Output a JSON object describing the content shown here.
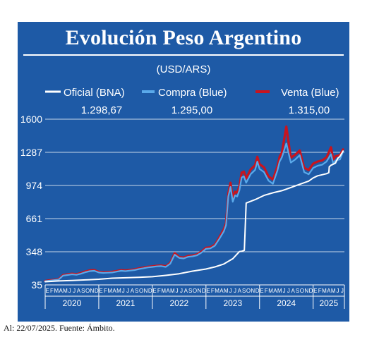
{
  "chart_data": {
    "type": "line",
    "title": "Evolución Peso Argentino",
    "subtitle": "(USD/ARS)",
    "footer": "Al: 22/07/2025. Fuente: Ámbito.",
    "legend": [
      {
        "name": "Oficial (BNA)",
        "value": "1.298,67",
        "color": "#ffffff"
      },
      {
        "name": "Compra (Blue)",
        "value": "1.295,00",
        "color": "#5aa9ea"
      },
      {
        "name": "Venta (Blue)",
        "value": "1.315,00",
        "color": "#c8141e"
      }
    ],
    "ylim": [
      35,
      1600
    ],
    "yticks": [
      "1600",
      "1287",
      "974",
      "661",
      "348",
      "35"
    ],
    "xlim": [
      0,
      67
    ],
    "month_ticks": [
      "E",
      "F",
      "M",
      "A",
      "M",
      "J",
      "J",
      "A",
      "S",
      "O",
      "N",
      "D",
      "E",
      "F",
      "M",
      "A",
      "M",
      "J",
      "J",
      "A",
      "S",
      "O",
      "N",
      "D",
      "E",
      "F",
      "M",
      "A",
      "M",
      "J",
      "J",
      "A",
      "S",
      "O",
      "N",
      "D",
      "E",
      "F",
      "M",
      "A",
      "M",
      "J",
      "J",
      "A",
      "S",
      "O",
      "N",
      "D",
      "E",
      "F",
      "M",
      "A",
      "M",
      "J",
      "J",
      "A",
      "S",
      "O",
      "N",
      "D",
      "E",
      "F",
      "M",
      "A",
      "M",
      "J",
      "J"
    ],
    "years": [
      {
        "label": "2020",
        "start": 0,
        "end": 12
      },
      {
        "label": "2021",
        "start": 12,
        "end": 24
      },
      {
        "label": "2022",
        "start": 24,
        "end": 36
      },
      {
        "label": "2023",
        "start": 36,
        "end": 48
      },
      {
        "label": "2024",
        "start": 48,
        "end": 60
      },
      {
        "label": "2025",
        "start": 60,
        "end": 67
      }
    ],
    "series": [
      {
        "name": "Oficial (BNA)",
        "x": [
          0,
          3,
          6,
          9,
          12,
          15,
          18,
          21,
          24,
          27,
          30,
          33,
          36,
          38,
          40,
          42,
          43.5,
          44,
          44.6,
          45,
          47,
          49,
          51,
          53,
          55,
          57,
          59,
          60,
          61,
          62,
          63,
          63.5,
          63.6,
          64,
          64.5,
          65,
          65.5,
          66,
          66.7
        ],
        "y": [
          65,
          72,
          77,
          82,
          88,
          98,
          102,
          106,
          112,
          125,
          140,
          165,
          185,
          205,
          232,
          282,
          350,
          352,
          362,
          808,
          840,
          880,
          905,
          925,
          955,
          985,
          1015,
          1045,
          1065,
          1075,
          1085,
          1095,
          1150,
          1165,
          1175,
          1185,
          1230,
          1250,
          1298.67
        ]
      },
      {
        "name": "Compra (Blue)",
        "x": [
          0,
          1,
          2,
          3,
          4,
          5,
          6,
          7,
          8,
          9,
          10,
          11,
          12,
          13,
          14,
          15,
          16,
          17,
          18,
          19,
          20,
          21,
          22,
          23,
          24,
          25,
          26,
          27,
          28,
          29,
          30,
          31,
          32,
          33,
          34,
          35,
          36,
          37,
          38,
          39,
          40,
          40.5,
          41,
          41.5,
          42,
          42.5,
          43,
          43.5,
          44,
          44.5,
          45,
          46,
          47,
          47.5,
          48,
          49,
          50,
          51,
          52,
          52.5,
          53,
          54,
          55,
          56,
          57,
          58,
          59,
          60,
          61,
          62,
          63,
          64,
          64.5,
          65,
          66,
          66.7
        ],
        "y": [
          70,
          75,
          80,
          85,
          122,
          128,
          135,
          130,
          140,
          155,
          165,
          168,
          152,
          148,
          150,
          152,
          160,
          168,
          165,
          170,
          175,
          185,
          192,
          200,
          205,
          210,
          212,
          205,
          235,
          320,
          290,
          285,
          300,
          305,
          315,
          340,
          375,
          380,
          405,
          470,
          540,
          600,
          870,
          960,
          820,
          880,
          870,
          930,
          1050,
          1060,
          1000,
          1080,
          1120,
          1200,
          1130,
          1100,
          1020,
          990,
          1115,
          1200,
          1240,
          1370,
          1190,
          1220,
          1260,
          1100,
          1080,
          1140,
          1160,
          1170,
          1200,
          1270,
          1180,
          1210,
          1220,
          1295
        ]
      },
      {
        "name": "Venta (Blue)",
        "x": [
          0,
          1,
          2,
          3,
          4,
          5,
          6,
          7,
          8,
          9,
          10,
          11,
          12,
          13,
          14,
          15,
          16,
          17,
          18,
          19,
          20,
          21,
          22,
          23,
          24,
          25,
          26,
          27,
          28,
          29,
          30,
          31,
          32,
          33,
          34,
          35,
          36,
          37,
          38,
          39,
          40,
          40.5,
          41,
          41.5,
          42,
          42.5,
          43,
          43.5,
          44,
          44.5,
          45,
          46,
          47,
          47.5,
          48,
          49,
          50,
          51,
          52,
          52.5,
          53,
          54,
          55,
          56,
          57,
          58,
          59,
          60,
          61,
          62,
          63,
          64,
          64.5,
          65,
          66,
          66.7
        ],
        "y": [
          72,
          78,
          83,
          88,
          128,
          134,
          141,
          136,
          146,
          162,
          172,
          175,
          158,
          154,
          156,
          158,
          166,
          174,
          171,
          176,
          181,
          191,
          198,
          206,
          210,
          216,
          218,
          211,
          242,
          335,
          298,
          293,
          308,
          313,
          323,
          350,
          385,
          390,
          415,
          485,
          560,
          620,
          900,
          1000,
          850,
          915,
          905,
          970,
          1095,
          1105,
          1040,
          1125,
          1165,
          1245,
          1175,
          1145,
          1060,
          1030,
          1155,
          1245,
          1285,
          1530,
          1235,
          1265,
          1305,
          1140,
          1120,
          1180,
          1200,
          1210,
          1240,
          1335,
          1220,
          1250,
          1260,
          1315
        ]
      }
    ]
  }
}
